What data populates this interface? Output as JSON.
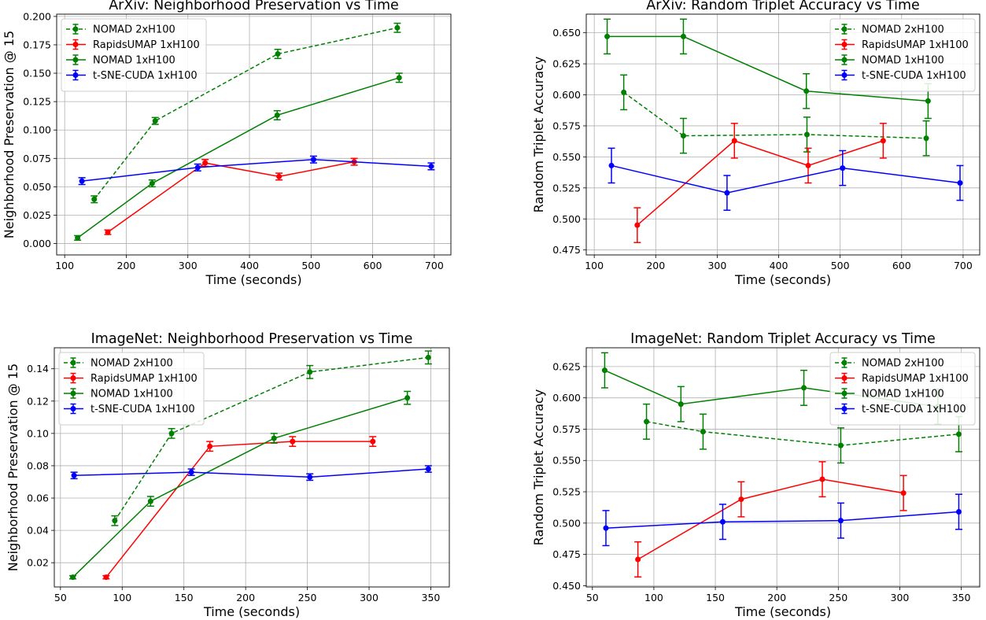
{
  "colors": {
    "NOMAD 2xH100": "#008000",
    "RapidsUMAP 1xH100": "#ff0000",
    "NOMAD 1xH100": "#008000",
    "t-SNE-CUDA 1xH100": "#0000ff"
  },
  "chart_data": [
    {
      "type": "line",
      "title": "ArXiv: Neighborhood Preservation vs Time",
      "xlabel": "Time (seconds)",
      "ylabel": "Neighborhood Preservation @ 15",
      "xlim": [
        87,
        727
      ],
      "ylim": [
        -0.01,
        0.202
      ],
      "xticks": [
        100,
        200,
        300,
        400,
        500,
        600,
        700
      ],
      "yticks": [
        0.0,
        0.025,
        0.05,
        0.075,
        0.1,
        0.125,
        0.15,
        0.175,
        0.2
      ],
      "yfmt": 3,
      "grid": true,
      "legend": "top-left",
      "series": [
        {
          "name": "NOMAD 2xH100",
          "dashed": true,
          "x": [
            148,
            247,
            446,
            640
          ],
          "y": [
            0.039,
            0.108,
            0.167,
            0.19
          ],
          "err": [
            0.003,
            0.003,
            0.004,
            0.004
          ]
        },
        {
          "name": "RapidsUMAP 1xH100",
          "dashed": false,
          "x": [
            170,
            328,
            448,
            570
          ],
          "y": [
            0.01,
            0.071,
            0.059,
            0.072
          ],
          "err": [
            0.002,
            0.003,
            0.003,
            0.003
          ]
        },
        {
          "name": "NOMAD 1xH100",
          "dashed": false,
          "x": [
            121,
            242,
            445,
            643
          ],
          "y": [
            0.005,
            0.053,
            0.113,
            0.146
          ],
          "err": [
            0.002,
            0.003,
            0.004,
            0.004
          ]
        },
        {
          "name": "t-SNE-CUDA 1xH100",
          "dashed": false,
          "x": [
            128,
            316,
            504,
            695
          ],
          "y": [
            0.055,
            0.067,
            0.074,
            0.068
          ],
          "err": [
            0.003,
            0.003,
            0.003,
            0.003
          ]
        }
      ]
    },
    {
      "type": "line",
      "title": "ArXiv: Random Triplet Accuracy vs Time",
      "xlabel": "Time (seconds)",
      "ylabel": "Random Triplet Accuracy",
      "xlim": [
        87,
        727
      ],
      "ylim": [
        0.471,
        0.665
      ],
      "xticks": [
        100,
        200,
        300,
        400,
        500,
        600,
        700
      ],
      "yticks": [
        0.475,
        0.5,
        0.525,
        0.55,
        0.575,
        0.6,
        0.625,
        0.65
      ],
      "yfmt": 3,
      "grid": true,
      "legend": "top-right",
      "series": [
        {
          "name": "NOMAD 2xH100",
          "dashed": true,
          "x": [
            148,
            245,
            446,
            640
          ],
          "y": [
            0.602,
            0.567,
            0.568,
            0.565
          ],
          "err": [
            0.014,
            0.014,
            0.014,
            0.014
          ]
        },
        {
          "name": "RapidsUMAP 1xH100",
          "dashed": false,
          "x": [
            170,
            328,
            448,
            570
          ],
          "y": [
            0.495,
            0.563,
            0.543,
            0.563
          ],
          "err": [
            0.014,
            0.014,
            0.014,
            0.014
          ]
        },
        {
          "name": "NOMAD 1xH100",
          "dashed": false,
          "x": [
            121,
            245,
            445,
            643
          ],
          "y": [
            0.647,
            0.647,
            0.603,
            0.595
          ],
          "err": [
            0.014,
            0.014,
            0.014,
            0.014
          ]
        },
        {
          "name": "t-SNE-CUDA 1xH100",
          "dashed": false,
          "x": [
            128,
            316,
            504,
            695
          ],
          "y": [
            0.543,
            0.521,
            0.541,
            0.529
          ],
          "err": [
            0.014,
            0.014,
            0.014,
            0.014
          ]
        }
      ]
    },
    {
      "type": "line",
      "title": "ImageNet: Neighborhood Preservation vs Time",
      "xlabel": "Time (seconds)",
      "ylabel": "Neighborhood Preservation @ 15",
      "xlim": [
        45,
        365
      ],
      "ylim": [
        0.005,
        0.153
      ],
      "xticks": [
        50,
        100,
        150,
        200,
        250,
        300,
        350
      ],
      "yticks": [
        0.02,
        0.04,
        0.06,
        0.08,
        0.1,
        0.12,
        0.14
      ],
      "yfmt": 2,
      "grid": true,
      "legend": "top-left",
      "series": [
        {
          "name": "NOMAD 2xH100",
          "dashed": true,
          "x": [
            94,
            140,
            252,
            348
          ],
          "y": [
            0.046,
            0.1,
            0.138,
            0.147
          ],
          "err": [
            0.003,
            0.003,
            0.004,
            0.004
          ]
        },
        {
          "name": "RapidsUMAP 1xH100",
          "dashed": false,
          "x": [
            87,
            171,
            238,
            303
          ],
          "y": [
            0.011,
            0.092,
            0.095,
            0.095
          ],
          "err": [
            0.001,
            0.003,
            0.003,
            0.003
          ]
        },
        {
          "name": "NOMAD 1xH100",
          "dashed": false,
          "x": [
            60,
            123,
            223,
            331
          ],
          "y": [
            0.011,
            0.058,
            0.097,
            0.122
          ],
          "err": [
            0.001,
            0.003,
            0.003,
            0.004
          ]
        },
        {
          "name": "t-SNE-CUDA 1xH100",
          "dashed": false,
          "x": [
            61,
            156,
            252,
            348
          ],
          "y": [
            0.074,
            0.076,
            0.073,
            0.078
          ],
          "err": [
            0.002,
            0.002,
            0.002,
            0.002
          ]
        }
      ]
    },
    {
      "type": "line",
      "title": "ImageNet: Random Triplet Accuracy vs Time",
      "xlabel": "Time (seconds)",
      "ylabel": "Random Triplet Accuracy",
      "xlim": [
        45,
        365
      ],
      "ylim": [
        0.449,
        0.64
      ],
      "xticks": [
        50,
        100,
        150,
        200,
        250,
        300,
        350
      ],
      "yticks": [
        0.45,
        0.475,
        0.5,
        0.525,
        0.55,
        0.575,
        0.6,
        0.625
      ],
      "yfmt": 3,
      "grid": true,
      "legend": "top-right",
      "series": [
        {
          "name": "NOMAD 2xH100",
          "dashed": true,
          "x": [
            94,
            140,
            252,
            348
          ],
          "y": [
            0.581,
            0.573,
            0.562,
            0.571
          ],
          "err": [
            0.014,
            0.014,
            0.014,
            0.014
          ]
        },
        {
          "name": "RapidsUMAP 1xH100",
          "dashed": false,
          "x": [
            87,
            171,
            237,
            303
          ],
          "y": [
            0.471,
            0.519,
            0.535,
            0.524
          ],
          "err": [
            0.014,
            0.014,
            0.014,
            0.014
          ]
        },
        {
          "name": "NOMAD 1xH100",
          "dashed": false,
          "x": [
            60,
            122,
            222,
            331
          ],
          "y": [
            0.622,
            0.595,
            0.608,
            0.593
          ],
          "err": [
            0.014,
            0.014,
            0.014,
            0.014
          ]
        },
        {
          "name": "t-SNE-CUDA 1xH100",
          "dashed": false,
          "x": [
            61,
            156,
            252,
            348
          ],
          "y": [
            0.496,
            0.501,
            0.502,
            0.509
          ],
          "err": [
            0.014,
            0.014,
            0.014,
            0.014
          ]
        }
      ]
    }
  ]
}
